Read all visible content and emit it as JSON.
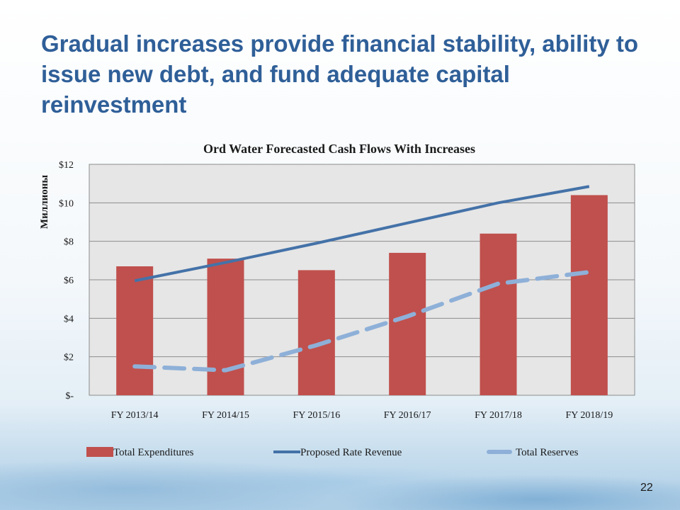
{
  "slide": {
    "title": "Gradual increases provide financial stability, ability to issue new debt, and fund adequate capital reinvestment",
    "page_number": "22"
  },
  "colors": {
    "title": "#2F5F98",
    "bars": "#C0504D",
    "revenue_line": "#4472A8",
    "reserves_line": "#8EB0D8",
    "plot_background": "#E6E6E6",
    "gridlines": "#8C8C8C"
  },
  "chart_data": {
    "type": "bar",
    "title": "Ord Water Forecasted Cash Flows With Increases",
    "ylabel": "Миллионы",
    "xlabel": "",
    "ylim": [
      0,
      12
    ],
    "yticks": [
      0,
      2,
      4,
      6,
      8,
      10,
      12
    ],
    "ytick_labels": [
      "$-",
      "$2",
      "$4",
      "$6",
      "$8",
      "$10",
      "$12"
    ],
    "categories": [
      "FY 2013/14",
      "FY 2014/15",
      "FY 2015/16",
      "FY 2016/17",
      "FY 2017/18",
      "FY 2018/19"
    ],
    "grid": true,
    "legend_position": "bottom",
    "series": [
      {
        "name": "Total Expenditures",
        "type": "bar",
        "values": [
          6.7,
          7.1,
          6.5,
          7.4,
          8.4,
          10.4
        ]
      },
      {
        "name": "Proposed Rate Revenue",
        "type": "line",
        "style": "solid",
        "values": [
          5.95,
          6.9,
          7.9,
          8.95,
          10.0,
          10.85
        ]
      },
      {
        "name": "Total Reserves",
        "type": "line",
        "style": "dashed",
        "values": [
          1.5,
          1.3,
          2.6,
          4.1,
          5.8,
          6.4
        ]
      }
    ]
  }
}
